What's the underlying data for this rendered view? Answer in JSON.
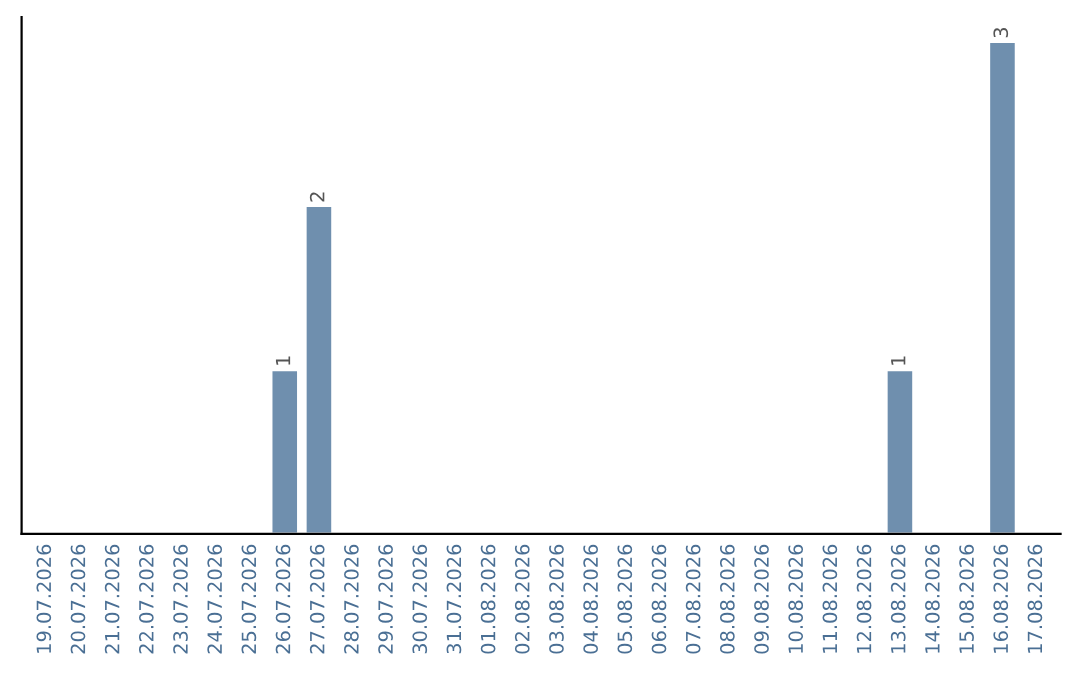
{
  "chart_data": {
    "type": "bar",
    "categories": [
      "19.07.2026",
      "20.07.2026",
      "21.07.2026",
      "22.07.2026",
      "23.07.2026",
      "24.07.2026",
      "25.07.2026",
      "26.07.2026",
      "27.07.2026",
      "28.07.2026",
      "29.07.2026",
      "30.07.2026",
      "31.07.2026",
      "01.08.2026",
      "02.08.2026",
      "03.08.2026",
      "04.08.2026",
      "05.08.2026",
      "06.08.2026",
      "07.08.2026",
      "08.08.2026",
      "09.08.2026",
      "10.08.2026",
      "11.08.2026",
      "12.08.2026",
      "13.08.2026",
      "14.08.2026",
      "15.08.2026",
      "16.08.2026",
      "17.08.2026"
    ],
    "values": [
      null,
      null,
      null,
      null,
      null,
      null,
      null,
      1,
      2,
      null,
      null,
      null,
      null,
      null,
      null,
      null,
      null,
      null,
      null,
      null,
      null,
      null,
      null,
      null,
      null,
      1,
      null,
      null,
      3,
      null
    ],
    "data_labels": true,
    "color": "#6f8fae",
    "grid": false,
    "tick_labels": "x"
  }
}
